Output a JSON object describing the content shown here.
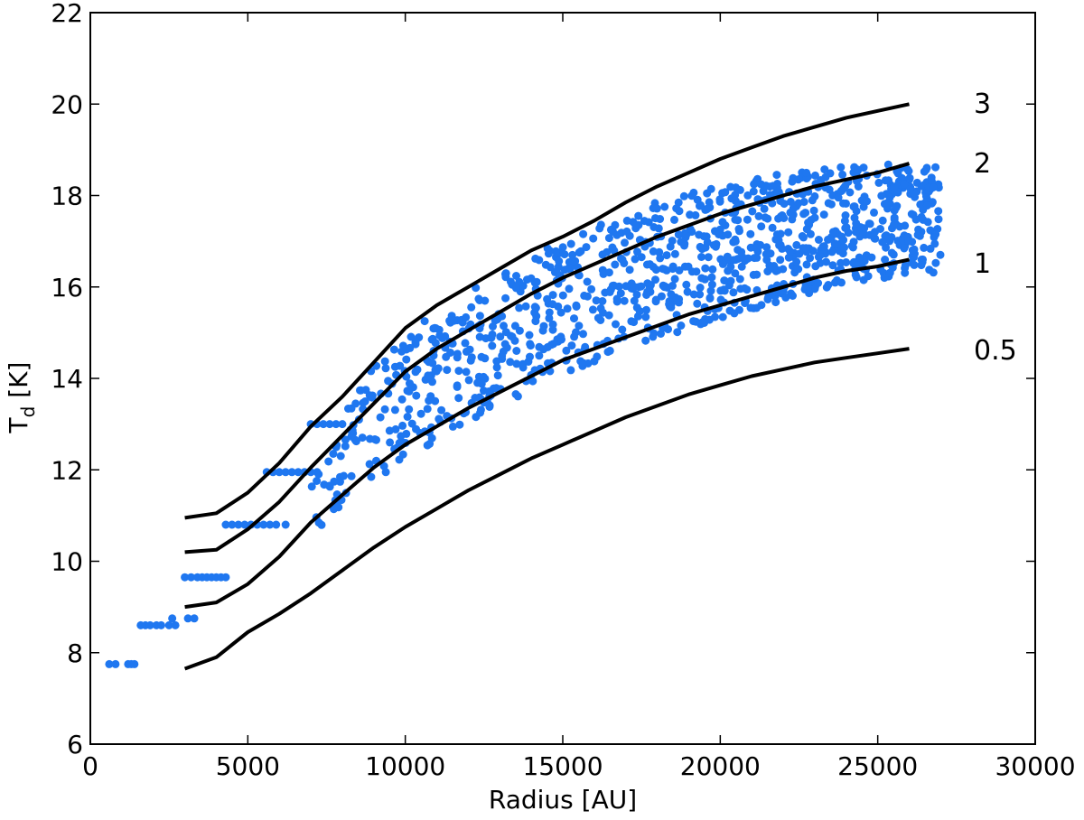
{
  "chart_data": {
    "type": "scatter",
    "title": "",
    "xlabel": "Radius [AU]",
    "ylabel_main": "T",
    "ylabel_sub": "d",
    "ylabel_unit": " [K]",
    "xlim": [
      0,
      30000
    ],
    "ylim": [
      6,
      22
    ],
    "xticks": [
      0,
      5000,
      10000,
      15000,
      20000,
      25000,
      30000
    ],
    "yticks": [
      6,
      8,
      10,
      12,
      14,
      16,
      18,
      20,
      22
    ],
    "grid": false,
    "colors": {
      "points": "#1f77f0",
      "curves": "#000000"
    },
    "curves": [
      {
        "label": "3",
        "x": [
          3000,
          4000,
          5000,
          6000,
          7000,
          8000,
          9000,
          10000,
          11000,
          12000,
          13000,
          14000,
          15000,
          16000,
          17000,
          18000,
          19000,
          20000,
          21000,
          22000,
          23000,
          24000,
          25000,
          26000
        ],
        "y": [
          10.95,
          11.05,
          11.5,
          12.15,
          12.95,
          13.6,
          14.35,
          15.1,
          15.6,
          16.0,
          16.4,
          16.8,
          17.1,
          17.45,
          17.85,
          18.2,
          18.5,
          18.8,
          19.05,
          19.3,
          19.5,
          19.7,
          19.85,
          20.0
        ]
      },
      {
        "label": "2",
        "x": [
          3000,
          4000,
          5000,
          6000,
          7000,
          8000,
          9000,
          10000,
          11000,
          12000,
          13000,
          14000,
          15000,
          16000,
          17000,
          18000,
          19000,
          20000,
          21000,
          22000,
          23000,
          24000,
          25000,
          26000
        ],
        "y": [
          10.2,
          10.25,
          10.7,
          11.3,
          12.05,
          12.75,
          13.45,
          14.15,
          14.65,
          15.05,
          15.45,
          15.85,
          16.2,
          16.5,
          16.8,
          17.1,
          17.35,
          17.6,
          17.8,
          18.0,
          18.2,
          18.35,
          18.5,
          18.7
        ]
      },
      {
        "label": "1",
        "x": [
          3000,
          4000,
          5000,
          6000,
          7000,
          8000,
          9000,
          10000,
          11000,
          12000,
          13000,
          14000,
          15000,
          16000,
          17000,
          18000,
          19000,
          20000,
          21000,
          22000,
          23000,
          24000,
          25000,
          26000
        ],
        "y": [
          9.0,
          9.1,
          9.5,
          10.1,
          10.85,
          11.45,
          12.05,
          12.55,
          12.95,
          13.35,
          13.7,
          14.05,
          14.4,
          14.65,
          14.9,
          15.15,
          15.4,
          15.6,
          15.8,
          16.0,
          16.2,
          16.35,
          16.45,
          16.6
        ]
      },
      {
        "label": "0.5",
        "x": [
          3000,
          4000,
          5000,
          6000,
          7000,
          8000,
          9000,
          10000,
          11000,
          12000,
          13000,
          14000,
          15000,
          16000,
          17000,
          18000,
          19000,
          20000,
          21000,
          22000,
          23000,
          24000,
          25000,
          26000
        ],
        "y": [
          7.65,
          7.9,
          8.45,
          8.85,
          9.3,
          9.8,
          10.3,
          10.75,
          11.15,
          11.55,
          11.9,
          12.25,
          12.55,
          12.85,
          13.15,
          13.4,
          13.65,
          13.85,
          14.05,
          14.2,
          14.35,
          14.45,
          14.55,
          14.65
        ]
      }
    ],
    "quantized_points": [
      {
        "y": 7.75,
        "x": [
          600,
          800,
          1200,
          1300,
          1400
        ]
      },
      {
        "y": 8.6,
        "x": [
          1600,
          1750,
          1900,
          2100,
          2250,
          2500,
          2700
        ]
      },
      {
        "y": 8.75,
        "x": [
          2600,
          3100,
          3300
        ]
      },
      {
        "y": 9.65,
        "x": [
          3000,
          3200,
          3400,
          3550,
          3700,
          3850,
          4000,
          4150,
          4300
        ]
      },
      {
        "y": 10.8,
        "x": [
          4300,
          4500,
          4700,
          4900,
          5100,
          5300,
          5500,
          5700,
          5900,
          6200
        ]
      },
      {
        "y": 11.95,
        "x": [
          5600,
          5800,
          6000,
          6200,
          6400,
          6600,
          6800,
          7000,
          7200
        ]
      },
      {
        "y": 13.0,
        "x": [
          7000,
          7200,
          7400,
          7600,
          7800,
          8000
        ]
      }
    ],
    "scatter_region": {
      "x_range": [
        7000,
        27000
      ],
      "description_values": "dense scatter of points bounded approximately between curve 1 and curve 3"
    }
  },
  "curve_label_texts": [
    "3",
    "2",
    "1",
    "0.5"
  ]
}
